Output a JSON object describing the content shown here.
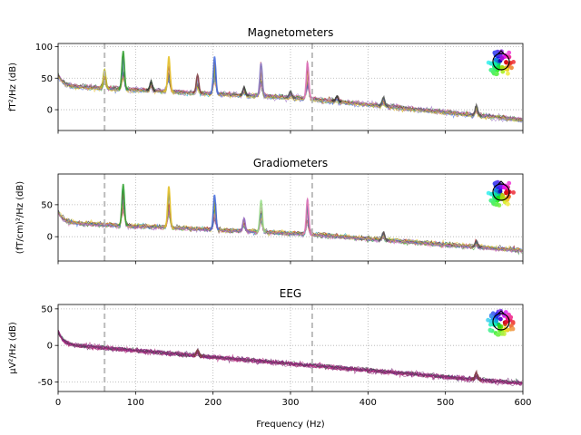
{
  "chart_data": [
    {
      "type": "line",
      "title": "Magnetometers",
      "xlabel": "",
      "ylabel": "fT²/Hz (dB)",
      "xlim": [
        0,
        600
      ],
      "ylim": [
        -33,
        105
      ],
      "xticks": [
        0,
        100,
        200,
        300,
        400,
        500,
        600
      ],
      "yticks": [
        100,
        50,
        0
      ],
      "show_xtick_labels": false,
      "grid": true,
      "vlines": [
        60,
        328
      ],
      "legend": "sensor-topomap at top-right",
      "baseline": {
        "start": 38,
        "end": -16,
        "knee_hz": 320,
        "knee_val": 18,
        "noise": 6
      },
      "peaks": [
        {
          "freq": 60,
          "height": 30,
          "color": "#bcbd22"
        },
        {
          "freq": 84,
          "height": 60,
          "color": "#2ca02c"
        },
        {
          "freq": 120,
          "height": 14,
          "color": "#333333"
        },
        {
          "freq": 143,
          "height": 55,
          "color": "#e6c229"
        },
        {
          "freq": 180,
          "height": 28,
          "color": "#7f3f3f"
        },
        {
          "freq": 202,
          "height": 58,
          "color": "#4169e1"
        },
        {
          "freq": 240,
          "height": 12,
          "color": "#444444"
        },
        {
          "freq": 262,
          "height": 52,
          "color": "#8a78c8"
        },
        {
          "freq": 300,
          "height": 10,
          "color": "#555555"
        },
        {
          "freq": 322,
          "height": 58,
          "color": "#e377c2"
        },
        {
          "freq": 360,
          "height": 8,
          "color": "#333333"
        },
        {
          "freq": 420,
          "height": 14,
          "color": "#555555"
        },
        {
          "freq": 540,
          "height": 15,
          "color": "#555555"
        }
      ]
    },
    {
      "type": "line",
      "title": "Gradiometers",
      "xlabel": "",
      "ylabel": "(fT/cm)²/Hz (dB)",
      "xlim": [
        0,
        600
      ],
      "ylim": [
        -38,
        98
      ],
      "xticks": [
        0,
        100,
        200,
        300,
        400,
        500,
        600
      ],
      "yticks": [
        50,
        0
      ],
      "show_xtick_labels": false,
      "grid": true,
      "vlines": [
        60,
        328
      ],
      "legend": "sensor-topomap at top-right",
      "baseline": {
        "start": 22,
        "end": -22,
        "knee_hz": 320,
        "knee_val": 4,
        "noise": 6
      },
      "peaks": [
        {
          "freq": 84,
          "height": 65,
          "color": "#2ca02c"
        },
        {
          "freq": 143,
          "height": 65,
          "color": "#e6c229"
        },
        {
          "freq": 202,
          "height": 55,
          "color": "#4169e1"
        },
        {
          "freq": 240,
          "height": 20,
          "color": "#9467bd"
        },
        {
          "freq": 262,
          "height": 50,
          "color": "#98df8a"
        },
        {
          "freq": 322,
          "height": 55,
          "color": "#e377c2"
        },
        {
          "freq": 420,
          "height": 12,
          "color": "#555555"
        },
        {
          "freq": 540,
          "height": 10,
          "color": "#555555"
        }
      ]
    },
    {
      "type": "line",
      "title": "EEG",
      "xlabel": "Frequency (Hz)",
      "ylabel": "µV²/Hz (dB)",
      "xlim": [
        0,
        600
      ],
      "ylim": [
        -63,
        56
      ],
      "xticks": [
        0,
        100,
        200,
        300,
        400,
        500,
        600
      ],
      "yticks": [
        50,
        0,
        -50
      ],
      "show_xtick_labels": true,
      "grid": true,
      "vlines": [
        60,
        328
      ],
      "legend": "sensor-topomap at top-right",
      "baseline": {
        "start": 2,
        "end": -52,
        "knee_hz": 0,
        "knee_val": 2,
        "noise": 5
      },
      "peaks": [
        {
          "freq": 180,
          "height": 8,
          "color": "#7f3f3f"
        },
        {
          "freq": 540,
          "height": 10,
          "color": "#7f3f3f"
        }
      ]
    }
  ],
  "colors": {
    "vline": "#b5b5b5",
    "grid": "#b0b0b0",
    "trace_base": [
      "#8c2d2d",
      "#2ca02c",
      "#4169e1",
      "#9467bd",
      "#e377c2",
      "#e6c229",
      "#333333",
      "#d62728",
      "#17becf",
      "#bcbd22"
    ],
    "eeg_base": [
      "#8e1f74",
      "#b0267f",
      "#6a1b6a",
      "#c2307a",
      "#5b2c83",
      "#2a5d3a"
    ]
  }
}
